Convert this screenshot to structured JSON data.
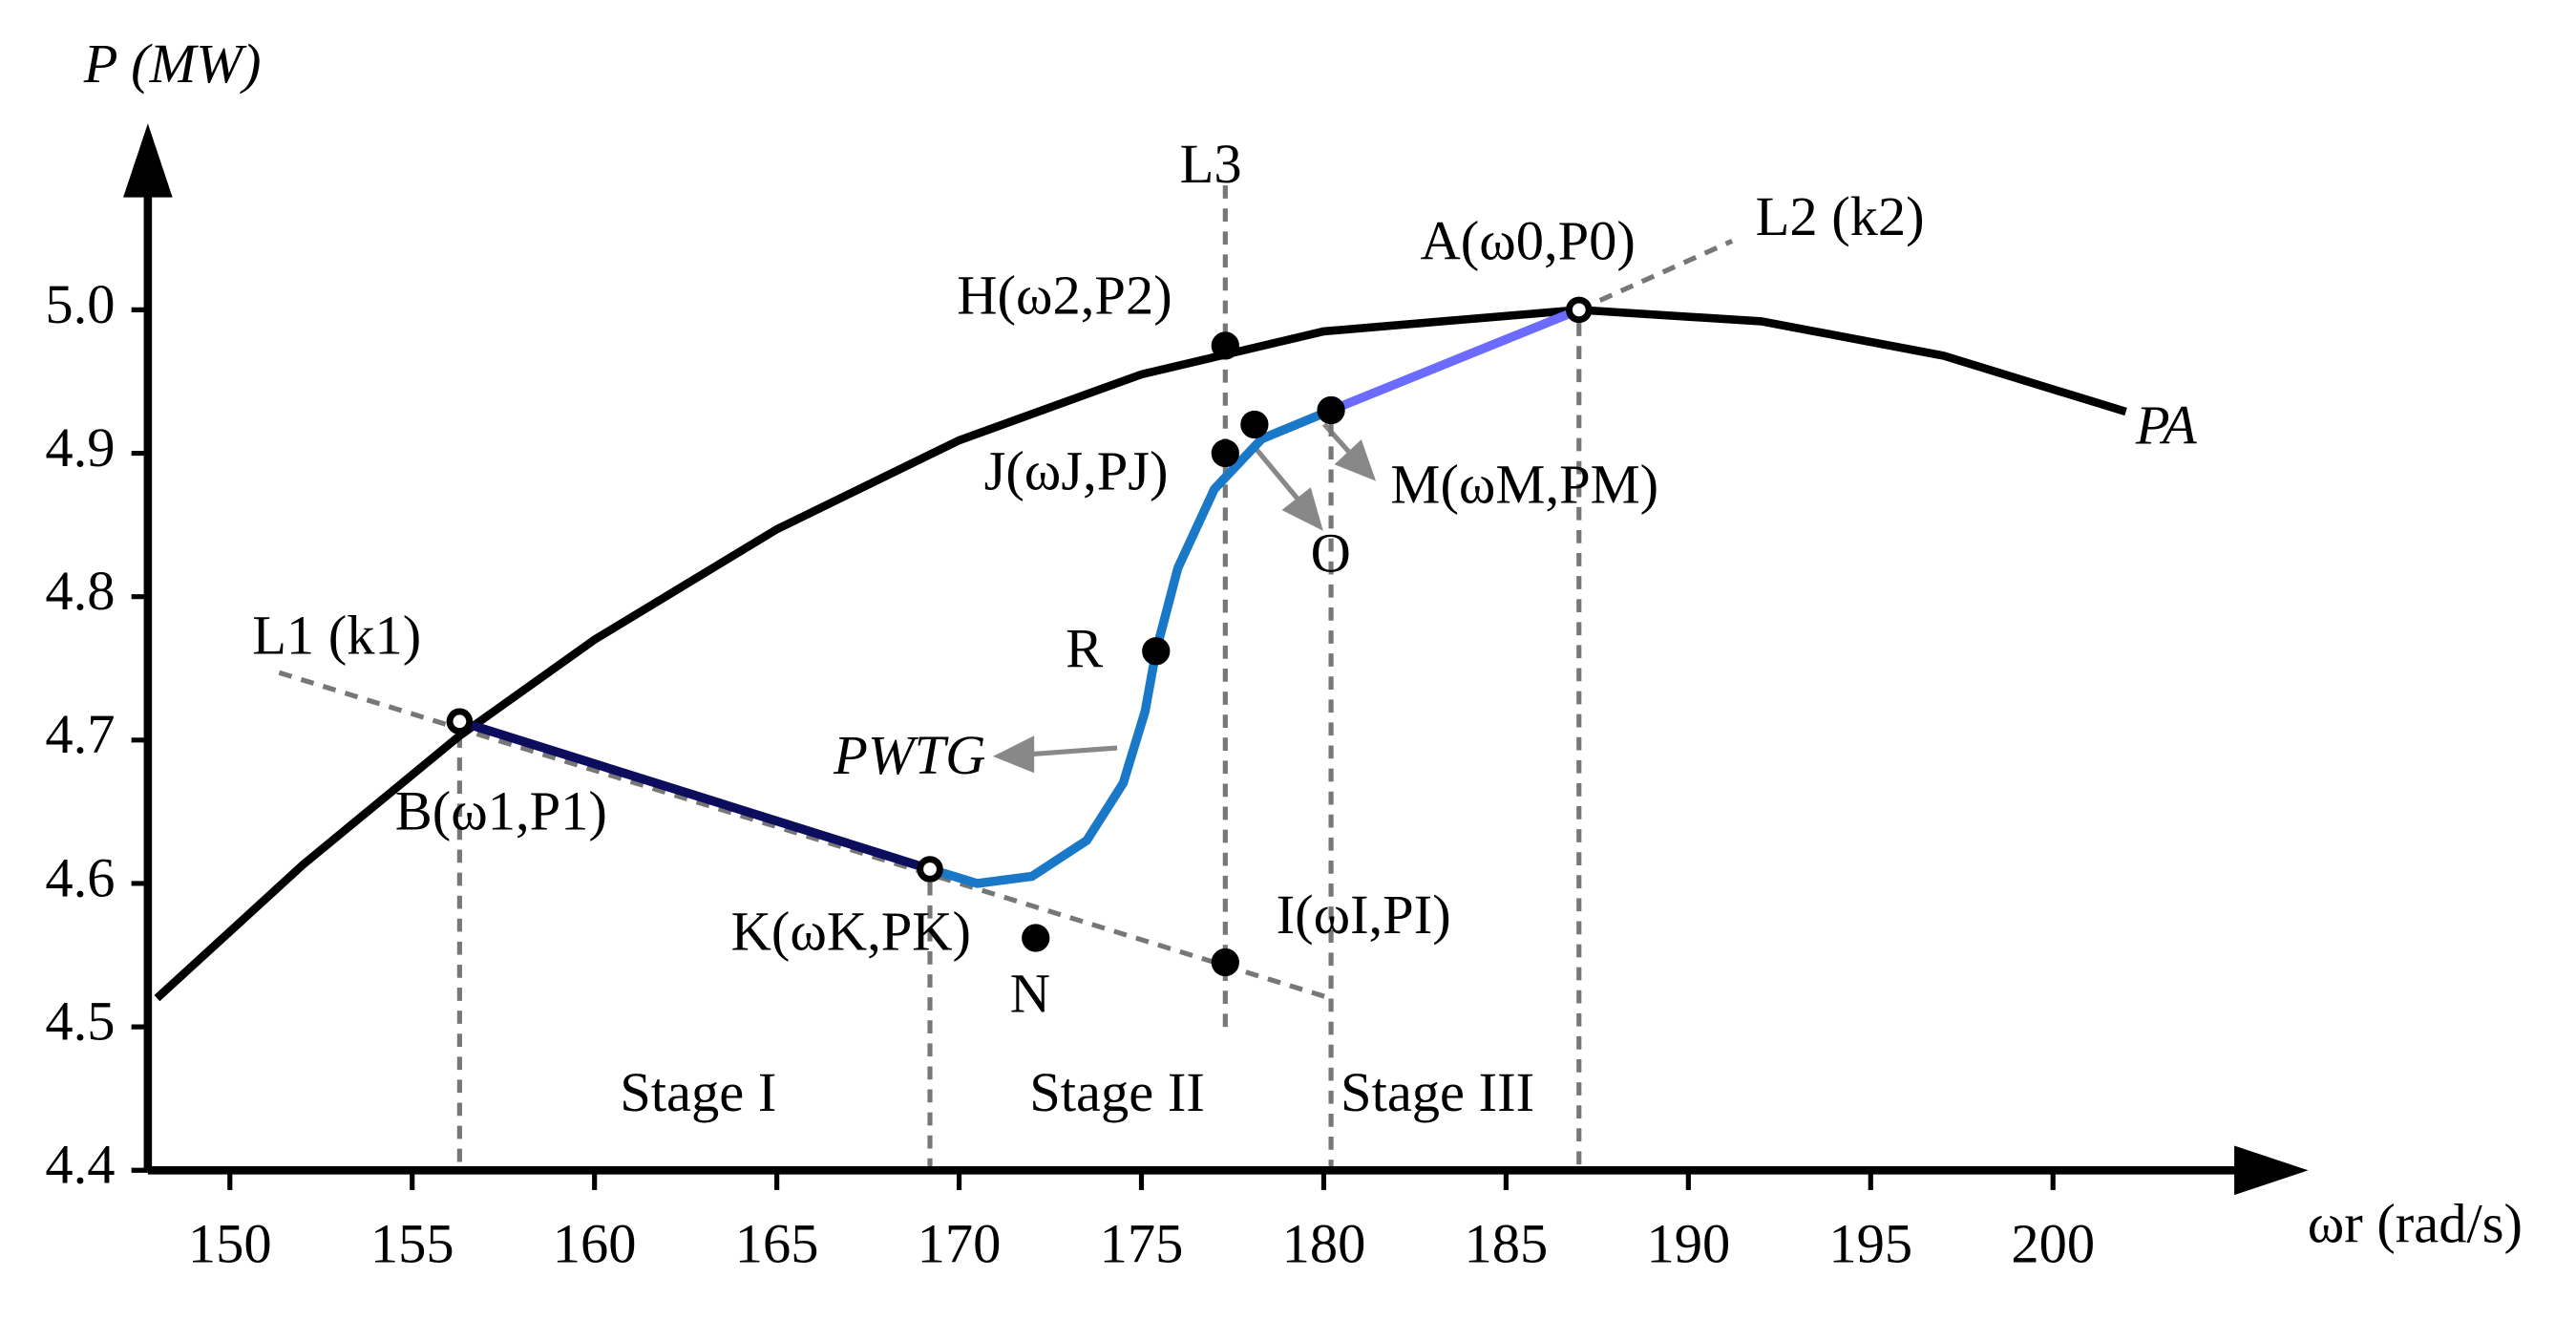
{
  "chart_data": {
    "type": "line",
    "y_label": "P (MW)",
    "x_label": "ωr (rad/s)",
    "xlim": [
      147.75,
      207
    ],
    "ylim": [
      4.4,
      5.13
    ],
    "xticks": [
      150,
      155,
      160,
      165,
      170,
      175,
      180,
      185,
      190,
      195,
      200
    ],
    "yticks": [
      4.4,
      4.5,
      4.6,
      4.7,
      4.8,
      4.9,
      {
        "value": 5.0,
        "label": "5.0"
      }
    ],
    "series": [
      {
        "name": "PA",
        "color": "#000000",
        "x": [
          148,
          152,
          156.3,
          160,
          165,
          170,
          175,
          180,
          187,
          192,
          197,
          202
        ],
        "values": [
          4.52,
          4.613,
          4.703,
          4.77,
          4.847,
          4.909,
          4.955,
          4.985,
          5.0,
          4.992,
          4.968,
          4.929
        ]
      },
      {
        "color": "#0d0d5e",
        "x": [
          156.3,
          169.2
        ],
        "values": [
          4.713,
          4.61
        ]
      },
      {
        "name": "PWTG",
        "color": "#1a78c8",
        "x": [
          169.2,
          170.5,
          172,
          173.5,
          174.5,
          175.1,
          175.4,
          176,
          177,
          178.3,
          180.2
        ],
        "values": [
          4.61,
          4.6,
          4.605,
          4.63,
          4.67,
          4.72,
          4.762,
          4.82,
          4.875,
          4.91,
          4.93
        ]
      },
      {
        "color": "#6b6bff",
        "x": [
          180.2,
          187
        ],
        "values": [
          4.93,
          5.0
        ]
      }
    ],
    "points": [
      {
        "label": "A(ω0,P0)",
        "x": 187,
        "y": 5.0
      },
      {
        "label": "B(ω1,P1)",
        "x": 156.3,
        "y": 4.713
      },
      {
        "label": "H(ω2,P2)",
        "x": 177.3,
        "y": 4.975
      },
      {
        "label": "J(ωJ,PJ)",
        "x": 177.3,
        "y": 4.9
      },
      {
        "label": "K(ωK,PK)",
        "x": 169.2,
        "y": 4.61
      },
      {
        "label": "I(ωI,PI)",
        "x": 177.3,
        "y": 4.545
      },
      {
        "label": "M(ωM,PM)",
        "x": 180.2,
        "y": 4.93
      },
      {
        "label": "O",
        "x": 178.1,
        "y": 4.92
      },
      {
        "label": "R",
        "x": 175.4,
        "y": 4.762
      },
      {
        "label": "N",
        "x": 172.1,
        "y": 4.562
      }
    ],
    "reference_lines": [
      {
        "label": "L1 (k1)",
        "x": [
          151.35,
          180.18
        ],
        "y": [
          4.747,
          4.52
        ]
      },
      {
        "label": "L2 (k2)",
        "x": [
          187,
          191.2
        ],
        "y": [
          5.0,
          5.048
        ]
      },
      {
        "label": "L3",
        "x": [
          177.3,
          177.3
        ],
        "y": [
          4.5,
          5.09
        ]
      }
    ],
    "stages": [
      "Stage I",
      "Stage II",
      "Stage III"
    ]
  }
}
